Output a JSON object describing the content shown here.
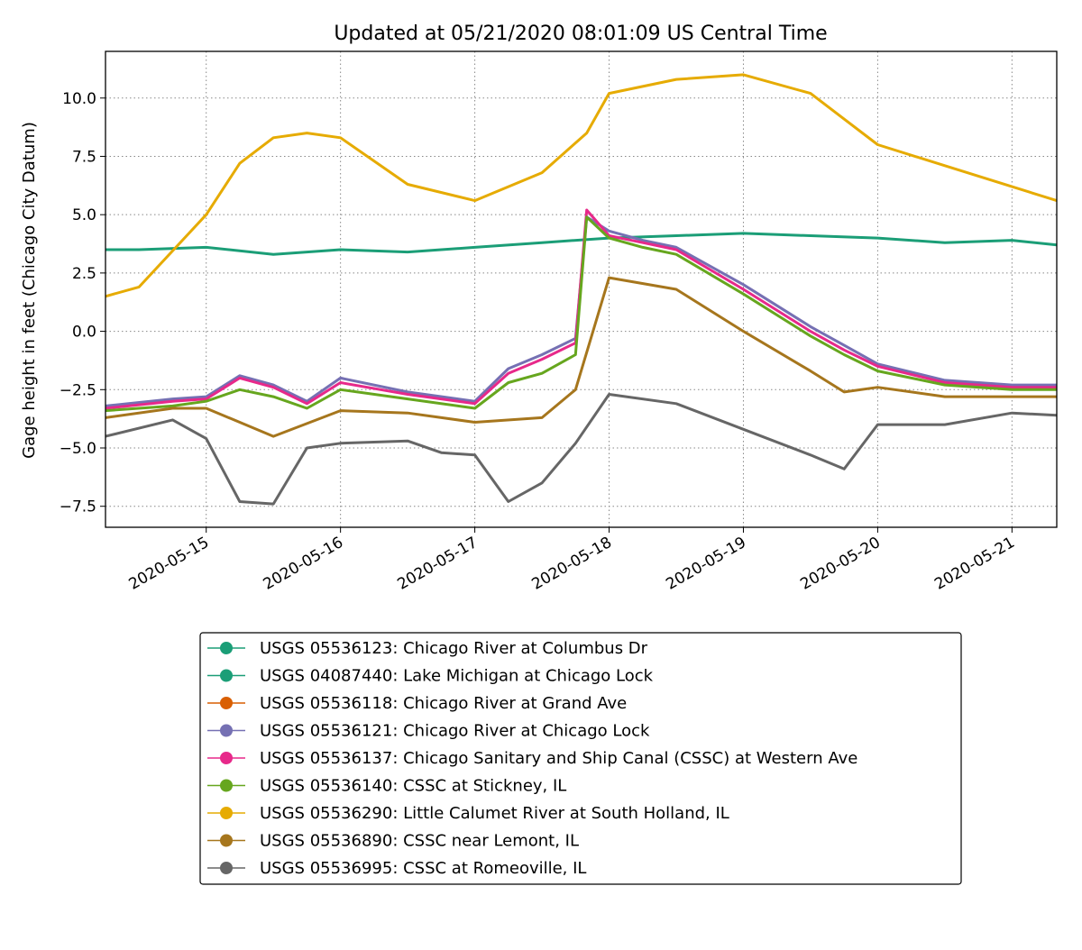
{
  "chart_data": {
    "type": "line",
    "title": "Updated at 05/21/2020 08:01:09 US Central Time",
    "xlabel": "",
    "ylabel": "Gage height in feet (Chicago City Datum)",
    "x_axis": "date",
    "xlim": [
      "2020-05-14T06:00",
      "2020-05-21T08:00"
    ],
    "ylim": [
      -8.4,
      12.0
    ],
    "grid": true,
    "grid_style": "dotted",
    "legend_position": "below",
    "x_ticks": [
      "2020-05-15",
      "2020-05-16",
      "2020-05-17",
      "2020-05-18",
      "2020-05-19",
      "2020-05-20",
      "2020-05-21"
    ],
    "y_ticks": [
      -7.5,
      -5.0,
      -2.5,
      0.0,
      2.5,
      5.0,
      7.5,
      10.0
    ],
    "y_tick_labels": [
      "−7.5",
      "−5.0",
      "−2.5",
      "0.0",
      "2.5",
      "5.0",
      "7.5",
      "10.0"
    ],
    "series": [
      {
        "name": "USGS 05536123: Chicago River at Columbus Dr",
        "color": "#1b9e77",
        "x": [
          "2020-05-14T06:00",
          "2020-05-14T12:00",
          "2020-05-15T00:00",
          "2020-05-15T12:00",
          "2020-05-16T00:00",
          "2020-05-16T12:00",
          "2020-05-17T00:00",
          "2020-05-17T12:00",
          "2020-05-18T00:00",
          "2020-05-18T12:00",
          "2020-05-19T00:00",
          "2020-05-19T12:00",
          "2020-05-20T00:00",
          "2020-05-20T12:00",
          "2020-05-21T00:00",
          "2020-05-21T08:00"
        ],
        "y": [
          3.5,
          3.5,
          3.6,
          3.3,
          3.5,
          3.4,
          3.6,
          3.8,
          4.0,
          4.1,
          4.2,
          4.1,
          4.0,
          3.8,
          3.9,
          3.7
        ]
      },
      {
        "name": "USGS 04087440: Lake Michigan at Chicago Lock",
        "color": "#1b9e77",
        "x": [],
        "y": []
      },
      {
        "name": "USGS 05536118: Chicago River at Grand Ave",
        "color": "#d95f02",
        "x": [],
        "y": []
      },
      {
        "name": "USGS 05536121: Chicago River at Chicago Lock",
        "color": "#7570b3",
        "x": [
          "2020-05-14T06:00",
          "2020-05-14T18:00",
          "2020-05-15T00:00",
          "2020-05-15T06:00",
          "2020-05-15T12:00",
          "2020-05-15T18:00",
          "2020-05-16T00:00",
          "2020-05-16T12:00",
          "2020-05-17T00:00",
          "2020-05-17T06:00",
          "2020-05-17T12:00",
          "2020-05-17T18:00",
          "2020-05-17T20:00",
          "2020-05-18T00:00",
          "2020-05-18T06:00",
          "2020-05-18T12:00",
          "2020-05-19T00:00",
          "2020-05-19T12:00",
          "2020-05-19T18:00",
          "2020-05-20T00:00",
          "2020-05-20T12:00",
          "2020-05-21T00:00",
          "2020-05-21T08:00"
        ],
        "y": [
          -3.2,
          -2.9,
          -2.8,
          -1.9,
          -2.3,
          -3.0,
          -2.0,
          -2.6,
          -3.0,
          -1.6,
          -1.0,
          -0.3,
          4.9,
          4.3,
          3.9,
          3.6,
          2.0,
          0.2,
          -0.6,
          -1.4,
          -2.1,
          -2.3,
          -2.3
        ]
      },
      {
        "name": "USGS 05536137: Chicago Sanitary and Ship Canal (CSSC) at Western Ave",
        "color": "#e7298a",
        "x": [
          "2020-05-14T06:00",
          "2020-05-14T18:00",
          "2020-05-15T00:00",
          "2020-05-15T06:00",
          "2020-05-15T12:00",
          "2020-05-15T18:00",
          "2020-05-16T00:00",
          "2020-05-16T12:00",
          "2020-05-17T00:00",
          "2020-05-17T06:00",
          "2020-05-17T12:00",
          "2020-05-17T18:00",
          "2020-05-17T20:00",
          "2020-05-18T00:00",
          "2020-05-18T06:00",
          "2020-05-18T12:00",
          "2020-05-19T00:00",
          "2020-05-19T12:00",
          "2020-05-19T18:00",
          "2020-05-20T00:00",
          "2020-05-20T12:00",
          "2020-05-21T00:00",
          "2020-05-21T08:00"
        ],
        "y": [
          -3.3,
          -3.0,
          -2.9,
          -2.0,
          -2.4,
          -3.1,
          -2.2,
          -2.7,
          -3.1,
          -1.8,
          -1.2,
          -0.5,
          5.2,
          4.1,
          3.8,
          3.5,
          1.8,
          0.0,
          -0.8,
          -1.5,
          -2.2,
          -2.4,
          -2.4
        ]
      },
      {
        "name": "USGS 05536140: CSSC at Stickney, IL",
        "color": "#66a61e",
        "x": [
          "2020-05-14T06:00",
          "2020-05-14T18:00",
          "2020-05-15T00:00",
          "2020-05-15T06:00",
          "2020-05-15T12:00",
          "2020-05-15T18:00",
          "2020-05-16T00:00",
          "2020-05-16T12:00",
          "2020-05-17T00:00",
          "2020-05-17T06:00",
          "2020-05-17T12:00",
          "2020-05-17T18:00",
          "2020-05-17T20:00",
          "2020-05-18T00:00",
          "2020-05-18T06:00",
          "2020-05-18T12:00",
          "2020-05-19T00:00",
          "2020-05-19T12:00",
          "2020-05-19T18:00",
          "2020-05-20T00:00",
          "2020-05-20T12:00",
          "2020-05-21T00:00",
          "2020-05-21T08:00"
        ],
        "y": [
          -3.4,
          -3.2,
          -3.0,
          -2.5,
          -2.8,
          -3.3,
          -2.5,
          -2.9,
          -3.3,
          -2.2,
          -1.8,
          -1.0,
          4.9,
          4.0,
          3.6,
          3.3,
          1.6,
          -0.2,
          -1.0,
          -1.7,
          -2.3,
          -2.5,
          -2.5
        ]
      },
      {
        "name": "USGS 05536290: Little Calumet River at South Holland, IL",
        "color": "#e6ab02",
        "x": [
          "2020-05-14T06:00",
          "2020-05-14T12:00",
          "2020-05-15T00:00",
          "2020-05-15T06:00",
          "2020-05-15T12:00",
          "2020-05-15T18:00",
          "2020-05-16T00:00",
          "2020-05-16T12:00",
          "2020-05-17T00:00",
          "2020-05-17T12:00",
          "2020-05-17T20:00",
          "2020-05-18T00:00",
          "2020-05-18T12:00",
          "2020-05-19T00:00",
          "2020-05-19T12:00",
          "2020-05-20T00:00",
          "2020-05-20T12:00",
          "2020-05-21T00:00",
          "2020-05-21T08:00"
        ],
        "y": [
          1.5,
          1.9,
          5.0,
          7.2,
          8.3,
          8.5,
          8.3,
          6.3,
          5.6,
          6.8,
          8.5,
          10.2,
          10.8,
          11.0,
          10.2,
          8.0,
          7.1,
          6.2,
          5.6
        ]
      },
      {
        "name": "USGS 05536890: CSSC near Lemont, IL",
        "color": "#a6761d",
        "x": [
          "2020-05-14T06:00",
          "2020-05-14T18:00",
          "2020-05-15T00:00",
          "2020-05-15T12:00",
          "2020-05-16T00:00",
          "2020-05-16T12:00",
          "2020-05-17T00:00",
          "2020-05-17T12:00",
          "2020-05-17T18:00",
          "2020-05-18T00:00",
          "2020-05-18T12:00",
          "2020-05-19T00:00",
          "2020-05-19T12:00",
          "2020-05-19T18:00",
          "2020-05-20T00:00",
          "2020-05-20T12:00",
          "2020-05-21T00:00",
          "2020-05-21T08:00"
        ],
        "y": [
          -3.7,
          -3.3,
          -3.3,
          -4.5,
          -3.4,
          -3.5,
          -3.9,
          -3.7,
          -2.5,
          2.3,
          1.8,
          0.0,
          -1.7,
          -2.6,
          -2.4,
          -2.8,
          -2.8,
          -2.8
        ]
      },
      {
        "name": "USGS 05536995: CSSC at Romeoville, IL",
        "color": "#666666",
        "x": [
          "2020-05-14T06:00",
          "2020-05-14T18:00",
          "2020-05-15T00:00",
          "2020-05-15T06:00",
          "2020-05-15T12:00",
          "2020-05-15T18:00",
          "2020-05-16T00:00",
          "2020-05-16T12:00",
          "2020-05-16T18:00",
          "2020-05-17T00:00",
          "2020-05-17T06:00",
          "2020-05-17T12:00",
          "2020-05-17T18:00",
          "2020-05-18T00:00",
          "2020-05-18T12:00",
          "2020-05-19T00:00",
          "2020-05-19T12:00",
          "2020-05-19T18:00",
          "2020-05-20T00:00",
          "2020-05-20T12:00",
          "2020-05-21T00:00",
          "2020-05-21T08:00"
        ],
        "y": [
          -4.5,
          -3.8,
          -4.6,
          -7.3,
          -7.4,
          -5.0,
          -4.8,
          -4.7,
          -5.2,
          -5.3,
          -7.3,
          -6.5,
          -4.8,
          -2.7,
          -3.1,
          -4.2,
          -5.3,
          -5.9,
          -4.0,
          -4.0,
          -3.5,
          -3.6
        ]
      }
    ]
  }
}
